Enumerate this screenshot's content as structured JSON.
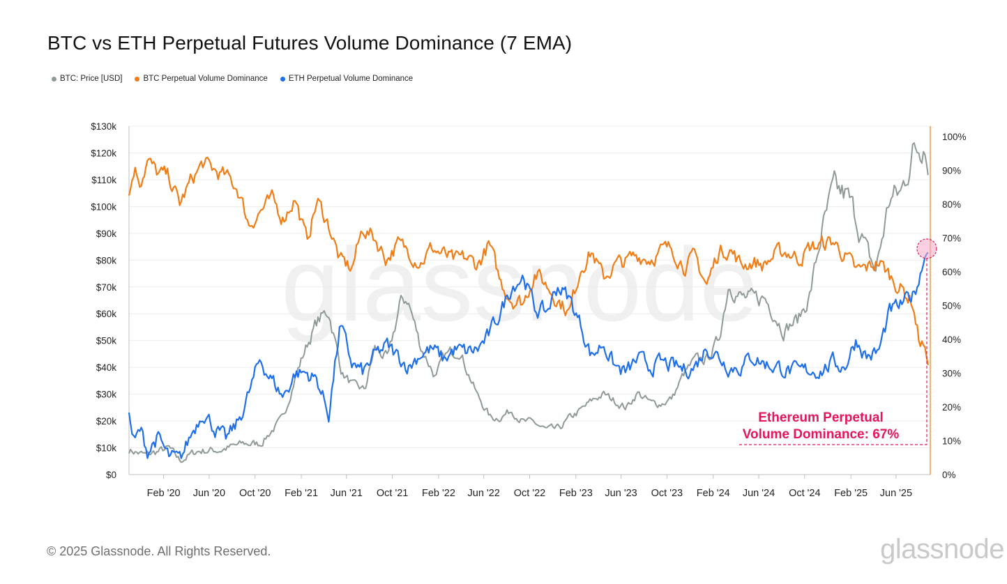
{
  "title": "BTC vs ETH Perpetual Futures Volume Dominance (7 EMA)",
  "legend": [
    {
      "label": "BTC: Price [USD]",
      "color": "#8f9a98"
    },
    {
      "label": "BTC Perpetual Volume Dominance",
      "color": "#f07d16"
    },
    {
      "label": "ETH Perpetual Volume Dominance",
      "color": "#1f6feb"
    }
  ],
  "footer": "© 2025 Glassnode. All Rights Reserved.",
  "brand": "glassnode",
  "annotation": {
    "line1": "Ethereum Perpetual",
    "line2": "Volume Dominance: 67%",
    "color": "#e6145a"
  },
  "chart_data": {
    "type": "line",
    "x_ticks": [
      "Feb '20",
      "Jun '20",
      "Oct '20",
      "Feb '21",
      "Jun '21",
      "Oct '21",
      "Feb '22",
      "Jun '22",
      "Oct '22",
      "Feb '23",
      "Jun '23",
      "Oct '23",
      "Feb '24",
      "Jun '24",
      "Oct '24",
      "Feb '25",
      "Jun '25"
    ],
    "y_left_ticks": [
      "$0",
      "$10k",
      "$20k",
      "$30k",
      "$40k",
      "$50k",
      "$60k",
      "$70k",
      "$80k",
      "$90k",
      "$100k",
      "$110k",
      "$120k",
      "$130k"
    ],
    "y_right_ticks": [
      "0%",
      "10%",
      "20%",
      "30%",
      "40%",
      "50%",
      "60%",
      "70%",
      "80%",
      "90%",
      "100%"
    ],
    "ylim_left": [
      0,
      130000
    ],
    "ylim_right": [
      0,
      100
    ],
    "xlim": [
      "2019-11-01",
      "2025-08-31"
    ],
    "grid": true,
    "legend_position": "top-left",
    "series": [
      {
        "name": "BTC: Price [USD]",
        "axis": "left",
        "color": "#8f9a98",
        "x": [
          "2019-11-01",
          "2019-12-15",
          "2020-02-15",
          "2020-03-15",
          "2020-05-01",
          "2020-07-01",
          "2020-09-01",
          "2020-10-15",
          "2020-11-15",
          "2020-12-15",
          "2021-01-15",
          "2021-02-15",
          "2021-03-15",
          "2021-04-15",
          "2021-05-20",
          "2021-06-20",
          "2021-07-20",
          "2021-08-15",
          "2021-09-20",
          "2021-10-20",
          "2021-11-10",
          "2021-12-15",
          "2022-01-25",
          "2022-02-15",
          "2022-03-28",
          "2022-04-15",
          "2022-05-15",
          "2022-06-20",
          "2022-07-15",
          "2022-08-15",
          "2022-09-15",
          "2022-10-15",
          "2022-11-15",
          "2022-12-15",
          "2023-01-20",
          "2023-02-15",
          "2023-03-20",
          "2023-04-15",
          "2023-06-15",
          "2023-07-15",
          "2023-08-20",
          "2023-09-15",
          "2023-10-15",
          "2023-11-15",
          "2023-12-15",
          "2024-01-15",
          "2024-02-15",
          "2024-03-14",
          "2024-04-15",
          "2024-05-15",
          "2024-06-15",
          "2024-07-15",
          "2024-08-05",
          "2024-09-15",
          "2024-10-15",
          "2024-11-15",
          "2024-12-17",
          "2025-01-20",
          "2025-02-15",
          "2025-03-15",
          "2025-04-08",
          "2025-05-15",
          "2025-06-15",
          "2025-07-14",
          "2025-08-13",
          "2025-08-25"
        ],
        "values": [
          9200,
          7200,
          9800,
          5200,
          8800,
          9200,
          11500,
          11500,
          16500,
          21000,
          36000,
          48000,
          57000,
          61000,
          38000,
          33000,
          31500,
          47000,
          43000,
          63000,
          66000,
          48000,
          36000,
          44000,
          47000,
          40000,
          29500,
          21000,
          21500,
          24000,
          19500,
          19200,
          16500,
          16800,
          21500,
          24000,
          28000,
          30000,
          25000,
          30500,
          26500,
          26500,
          28500,
          37500,
          42500,
          43000,
          50000,
          72000,
          66000,
          65000,
          66000,
          60000,
          54000,
          58000,
          67000,
          90000,
          106000,
          104000,
          96000,
          83000,
          76000,
          103000,
          105000,
          120000,
          123000,
          113000
        ]
      },
      {
        "name": "BTC Perpetual Volume Dominance",
        "axis": "right",
        "color": "#f07d16",
        "x": [
          "2019-11-01",
          "2019-11-15",
          "2019-12-01",
          "2019-12-20",
          "2020-01-15",
          "2020-02-15",
          "2020-03-15",
          "2020-04-15",
          "2020-05-15",
          "2020-06-15",
          "2020-07-15",
          "2020-08-15",
          "2020-09-15",
          "2020-10-15",
          "2020-11-15",
          "2020-12-15",
          "2021-01-15",
          "2021-02-15",
          "2021-03-15",
          "2021-04-15",
          "2021-05-15",
          "2021-06-15",
          "2021-07-15",
          "2021-08-15",
          "2021-09-15",
          "2021-10-15",
          "2021-11-15",
          "2021-12-15",
          "2022-01-15",
          "2022-02-15",
          "2022-03-15",
          "2022-04-15",
          "2022-05-15",
          "2022-06-15",
          "2022-07-15",
          "2022-08-15",
          "2022-09-15",
          "2022-10-15",
          "2022-11-15",
          "2022-12-15",
          "2023-01-15",
          "2023-02-15",
          "2023-03-15",
          "2023-04-15",
          "2023-05-15",
          "2023-06-15",
          "2023-07-15",
          "2023-08-15",
          "2023-09-15",
          "2023-10-15",
          "2023-11-15",
          "2023-12-15",
          "2024-01-15",
          "2024-02-15",
          "2024-03-15",
          "2024-04-15",
          "2024-05-15",
          "2024-06-15",
          "2024-07-15",
          "2024-08-15",
          "2024-09-15",
          "2024-10-15",
          "2024-11-15",
          "2024-12-15",
          "2025-01-15",
          "2025-02-15",
          "2025-03-15",
          "2025-04-15",
          "2025-05-15",
          "2025-06-15",
          "2025-07-15",
          "2025-08-01",
          "2025-08-15",
          "2025-08-25"
        ],
        "values": [
          82,
          91,
          87,
          93,
          89,
          88,
          80,
          87,
          92,
          90,
          88,
          85,
          74,
          78,
          81,
          76,
          82,
          69,
          81,
          74,
          63,
          61,
          73,
          70,
          64,
          68,
          66,
          63,
          67,
          65,
          63,
          64,
          62,
          68,
          57,
          52,
          51,
          60,
          56,
          52,
          48,
          62,
          66,
          58,
          62,
          63,
          65,
          64,
          66,
          67,
          62,
          64,
          56,
          66,
          67,
          62,
          63,
          62,
          65,
          66,
          64,
          67,
          68,
          69,
          65,
          60,
          61,
          63,
          59,
          55,
          51,
          40,
          38,
          33
        ]
      },
      {
        "name": "ETH Perpetual Volume Dominance",
        "axis": "right",
        "color": "#1f6feb",
        "x": [
          "2019-11-01",
          "2019-11-15",
          "2019-12-01",
          "2019-12-20",
          "2020-01-15",
          "2020-02-15",
          "2020-03-15",
          "2020-04-15",
          "2020-05-15",
          "2020-06-15",
          "2020-07-15",
          "2020-08-15",
          "2020-09-15",
          "2020-10-15",
          "2020-11-15",
          "2020-12-15",
          "2021-01-15",
          "2021-02-15",
          "2021-03-15",
          "2021-04-15",
          "2021-05-15",
          "2021-06-15",
          "2021-07-15",
          "2021-08-15",
          "2021-09-15",
          "2021-10-15",
          "2021-11-15",
          "2021-12-15",
          "2022-01-15",
          "2022-02-15",
          "2022-03-15",
          "2022-04-15",
          "2022-05-15",
          "2022-06-15",
          "2022-07-15",
          "2022-08-15",
          "2022-09-15",
          "2022-10-15",
          "2022-11-15",
          "2022-12-15",
          "2023-01-15",
          "2023-02-15",
          "2023-03-15",
          "2023-04-15",
          "2023-05-15",
          "2023-06-15",
          "2023-07-15",
          "2023-08-15",
          "2023-09-15",
          "2023-10-15",
          "2023-11-15",
          "2023-12-15",
          "2024-01-15",
          "2024-02-15",
          "2024-03-15",
          "2024-04-15",
          "2024-05-15",
          "2024-06-15",
          "2024-07-15",
          "2024-08-15",
          "2024-09-15",
          "2024-10-15",
          "2024-11-15",
          "2024-12-15",
          "2025-01-15",
          "2025-02-15",
          "2025-03-15",
          "2025-04-15",
          "2025-05-15",
          "2025-06-15",
          "2025-07-15",
          "2025-08-01",
          "2025-08-15",
          "2025-08-25"
        ],
        "values": [
          17,
          9,
          13,
          7,
          11,
          5,
          4,
          12,
          19,
          14,
          10,
          15,
          24,
          34,
          28,
          23,
          30,
          30,
          28,
          18,
          44,
          33,
          30,
          35,
          38,
          35,
          32,
          36,
          37,
          34,
          37,
          36,
          37,
          41,
          48,
          56,
          59,
          49,
          48,
          56,
          52,
          44,
          35,
          39,
          32,
          30,
          34,
          32,
          33,
          32,
          31,
          32,
          38,
          35,
          32,
          32,
          35,
          33,
          32,
          31,
          30,
          31,
          31,
          33,
          32,
          40,
          35,
          36,
          48,
          50,
          53,
          58,
          64,
          66
        ]
      }
    ]
  }
}
